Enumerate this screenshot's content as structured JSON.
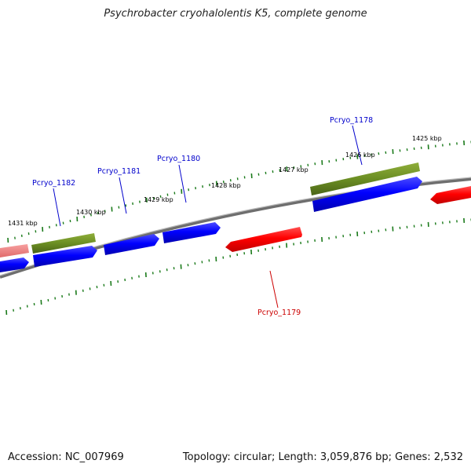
{
  "title": "Psychrobacter cryohalolentis K5, complete genome",
  "accession": "Accession: NC_007969",
  "summary": "Topology: circular; Length: 3,059,876 bp; Genes: 2,532",
  "colors": {
    "forward_gene": "#0000ff",
    "reverse_gene": "#ff0000",
    "reverse_gene_faded": "#f08080",
    "feature_band": "#6b8e23",
    "backbone": "#808080",
    "ticks": "#1a7a1a",
    "label_forward": "#0000cc",
    "label_reverse": "#cc0000",
    "tick_label": "#000000"
  },
  "scale_labels": [
    "1431 kbp",
    "1430 kbp",
    "1429 kbp",
    "1428 kbp",
    "1427 kbp",
    "1426 kbp",
    "1425 kbp"
  ],
  "gene_labels": [
    {
      "name": "Pcryo_1182",
      "strand": "forward"
    },
    {
      "name": "Pcryo_1181",
      "strand": "forward"
    },
    {
      "name": "Pcryo_1180",
      "strand": "forward"
    },
    {
      "name": "Pcryo_1178",
      "strand": "forward"
    },
    {
      "name": "Pcryo_1179",
      "strand": "reverse"
    }
  ]
}
